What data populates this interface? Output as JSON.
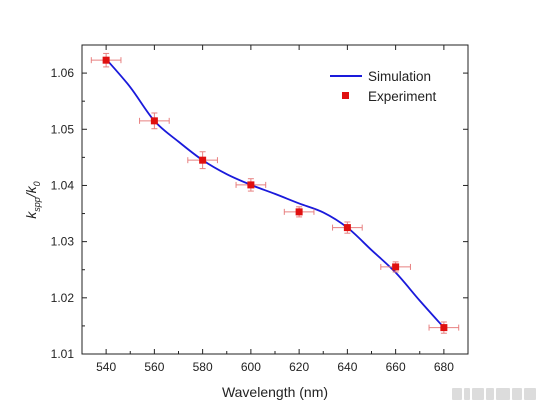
{
  "chart_data": {
    "type": "line+scatter",
    "xlabel": "Wavelength (nm)",
    "ylabel_main": "k",
    "ylabel_sub1": "spp",
    "ylabel_sep": "/k",
    "ylabel_sub2": "0",
    "xlim": [
      530,
      690
    ],
    "ylim": [
      1.01,
      1.065
    ],
    "xticks": [
      540,
      560,
      580,
      600,
      620,
      640,
      660,
      680
    ],
    "yticks": [
      1.01,
      1.02,
      1.03,
      1.04,
      1.05,
      1.06
    ],
    "xtick_labels": [
      "540",
      "560",
      "580",
      "600",
      "620",
      "640",
      "660",
      "680"
    ],
    "ytick_labels": [
      "1.01",
      "1.02",
      "1.03",
      "1.04",
      "1.05",
      "1.06"
    ],
    "legend_position": "top-right",
    "series": [
      {
        "name": "Simulation",
        "kind": "line",
        "color": "#1a1adb",
        "x": [
          540,
          550,
          560,
          570,
          580,
          590,
          600,
          610,
          620,
          630,
          640,
          650,
          660,
          670,
          680
        ],
        "y": [
          1.0625,
          1.0575,
          1.0515,
          1.0478,
          1.0445,
          1.042,
          1.0401,
          1.0385,
          1.0368,
          1.0352,
          1.0325,
          1.0285,
          1.0245,
          1.0195,
          1.0147
        ]
      },
      {
        "name": "Experiment",
        "kind": "scatter",
        "color": "#e01010",
        "error_color": "#e88080",
        "x": [
          540,
          560,
          580,
          600,
          620,
          640,
          660,
          680
        ],
        "y": [
          1.0623,
          1.0515,
          1.0445,
          1.0401,
          1.0353,
          1.0325,
          1.0255,
          1.0147
        ],
        "xerr": [
          2,
          2,
          2,
          2,
          2,
          2,
          2,
          2
        ],
        "yerr": [
          0.0012,
          0.0014,
          0.0015,
          0.0011,
          0.0009,
          0.001,
          0.0009,
          0.001
        ]
      }
    ]
  }
}
